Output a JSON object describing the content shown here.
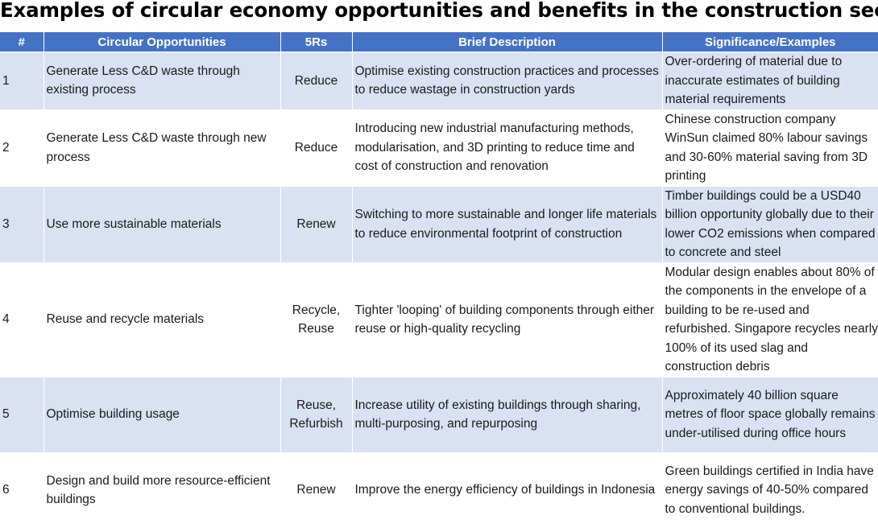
{
  "title": "Examples of circular economy opportunities and benefits in the construction sector",
  "headers": {
    "num": "#",
    "opportunity": "Circular Opportunities",
    "five_rs": "5Rs",
    "description": "Brief Description",
    "significance": "Significance/Examples"
  },
  "rows": [
    {
      "num": "1",
      "opportunity": "Generate Less C&D waste through existing process",
      "five_rs": "Reduce",
      "description": "Optimise existing construction practices and processes to reduce wastage in construction yards",
      "significance": "Over-ordering of material due to inaccurate estimates of building material requirements"
    },
    {
      "num": "2",
      "opportunity": "Generate Less C&D waste through new process",
      "five_rs": "Reduce",
      "description": "Introducing new industrial manufacturing methods, modularisation, and 3D printing to reduce time and cost of construction and renovation",
      "significance": "Chinese construction company WinSun claimed 80% labour savings and 30-60% material saving from 3D printing"
    },
    {
      "num": "3",
      "opportunity": "Use more sustainable materials",
      "five_rs": "Renew",
      "description": "Switching to more sustainable and longer life materials to reduce environmental footprint of construction",
      "significance": "Timber buildings could be a USD40 billion opportunity globally due to their lower CO2 emissions when compared to concrete and steel"
    },
    {
      "num": "4",
      "opportunity": "Reuse and recycle materials",
      "five_rs": "Recycle, Reuse",
      "description": "Tighter 'looping' of building components through either reuse or high-quality recycling",
      "significance": "Modular design enables about 80% of the components in the envelope of a building to be re-used and refurbished. Singapore recycles nearly 100% of its used slag and construction debris"
    },
    {
      "num": "5",
      "opportunity": "Optimise building usage",
      "five_rs": "Reuse, Refurbish",
      "description": "Increase utility of existing buildings through sharing, multi-purposing, and repurposing",
      "significance": "Approximately 40 billion square metres of floor space globally remains under-utilised during office hours"
    },
    {
      "num": "6",
      "opportunity": "Design and build more resource-efficient buildings",
      "five_rs": "Renew",
      "description": "Improve the energy efficiency of buildings in Indonesia",
      "significance": "Green buildings certified in India have energy savings of 40-50% compared to conventional buildings."
    }
  ]
}
